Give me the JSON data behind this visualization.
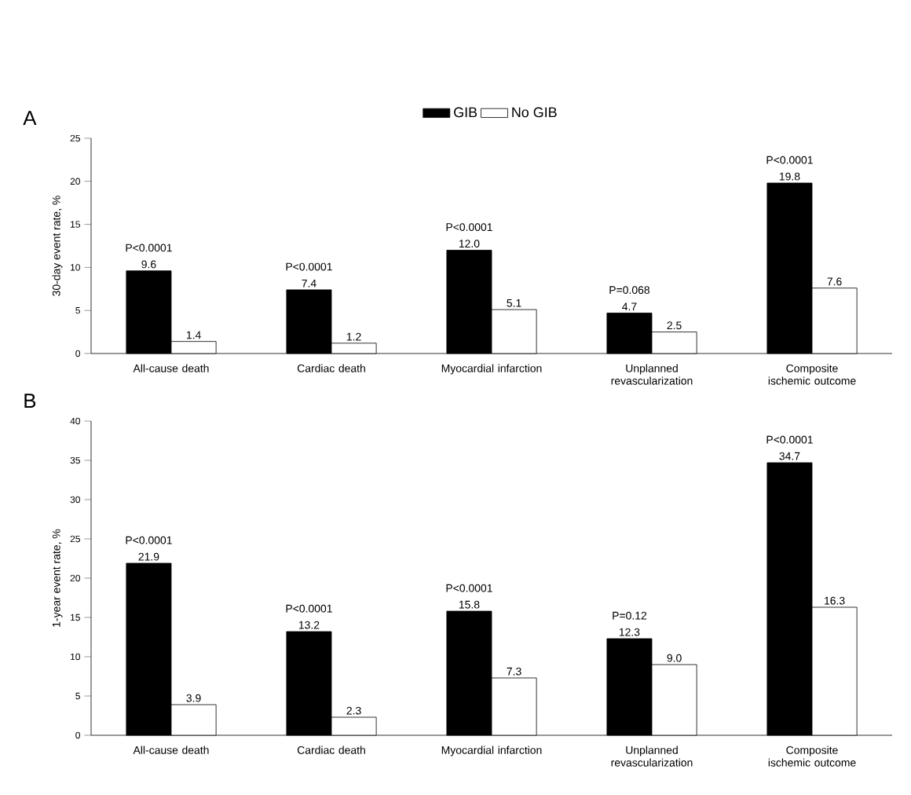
{
  "chart_data": [
    {
      "type": "bar",
      "title": "A",
      "ylabel": "30-day event rate, %",
      "categories": [
        "All-cause death",
        "Cardiac death",
        "Myocardial infarction",
        "Unplanned revascularization",
        "Composite ischemic outcome"
      ],
      "series": [
        {
          "name": "GIB",
          "color": "#000000",
          "values": [
            9.6,
            7.4,
            12.0,
            4.7,
            19.8
          ],
          "value_labels": [
            "9.6",
            "7.4",
            "12.0",
            "4.7",
            "19.8"
          ]
        },
        {
          "name": "No GIB",
          "color": "#ffffff",
          "values": [
            1.4,
            1.2,
            5.1,
            2.5,
            7.6
          ],
          "value_labels": [
            "1.4",
            "1.2",
            "5.1",
            "2.5",
            "7.6"
          ]
        }
      ],
      "ylim": [
        0,
        25
      ],
      "yticks": [
        0,
        5,
        10,
        15,
        20,
        25
      ],
      "legend": "top",
      "annotations": [
        {
          "text": "P<0.0001",
          "x": "All-cause death",
          "y": 9.6
        },
        {
          "text": "P<0.0001",
          "x": "Cardiac death",
          "y": 7.4
        },
        {
          "text": "P<0.0001",
          "x": "Myocardial infarction",
          "y": 12.0
        },
        {
          "text": "P=0.068",
          "x": "Unplanned revascularization",
          "y": 4.7
        },
        {
          "text": "P<0.0001",
          "x": "Composite ischemic outcome",
          "y": 19.8
        }
      ]
    },
    {
      "type": "bar",
      "title": "B",
      "ylabel": "1-year event rate, %",
      "categories": [
        "All-cause death",
        "Cardiac death",
        "Myocardial infarction",
        "Unplanned revascularization",
        "Composite ischemic outcome"
      ],
      "series": [
        {
          "color": "#000000",
          "values": [
            21.9,
            13.2,
            15.8,
            12.3,
            34.7
          ],
          "value_labels": [
            "21.9",
            "13.2",
            "15.8",
            "12.3",
            "34.7"
          ]
        },
        {
          "color": "#ffffff",
          "values": [
            3.9,
            2.3,
            7.3,
            9.0,
            16.3
          ],
          "value_labels": [
            "3.9",
            "2.3",
            "7.3",
            "9.0",
            "16.3"
          ]
        }
      ],
      "ylim": [
        0,
        40
      ],
      "yticks": [
        0,
        5,
        10,
        15,
        20,
        25,
        30,
        35,
        40
      ],
      "annotations": [
        {
          "text": "P<0.0001",
          "x": "All-cause death",
          "y": 21.9
        },
        {
          "text": "P<0.0001",
          "x": "Cardiac death",
          "y": 13.2
        },
        {
          "text": "P<0.0001",
          "x": "Myocardial infarction",
          "y": 15.8
        },
        {
          "text": "P=0.12",
          "x": "Unplanned revascularization",
          "y": 12.3
        },
        {
          "text": "P<0.0001",
          "x": "Composite ischemic outcome",
          "y": 34.7
        }
      ]
    }
  ]
}
